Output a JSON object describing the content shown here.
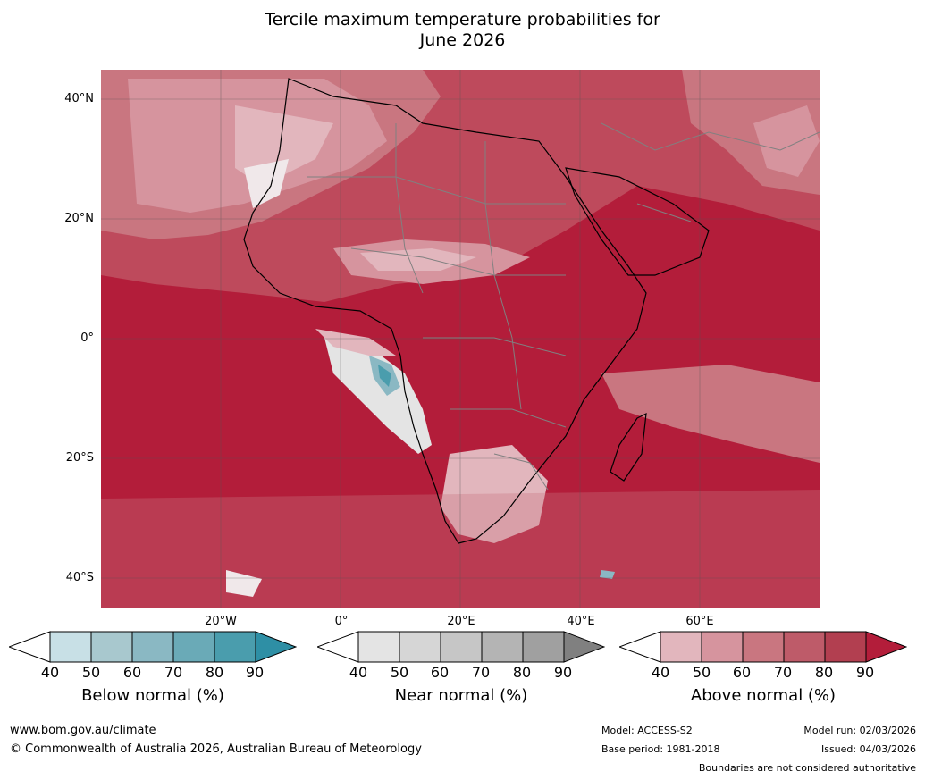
{
  "title": {
    "line1": "Tercile maximum temperature probabilities for",
    "line2": "June 2026"
  },
  "map": {
    "lat_labels": [
      "40°N",
      "20°N",
      "0°",
      "20°S",
      "40°S"
    ],
    "lon_labels": [
      "20°W",
      "0°",
      "20°E",
      "40°E",
      "60°E"
    ]
  },
  "colorbars": [
    {
      "label": "Below normal (%)",
      "ticks": [
        "40",
        "50",
        "60",
        "70",
        "80",
        "90"
      ],
      "colors": [
        "#ffffff",
        "#c8e0e6",
        "#a8c8ce",
        "#8ab8c3",
        "#6aaab7",
        "#4a9dad",
        "#2e8fa5"
      ]
    },
    {
      "label": "Near normal (%)",
      "ticks": [
        "40",
        "50",
        "60",
        "70",
        "80",
        "90"
      ],
      "colors": [
        "#ffffff",
        "#e4e4e4",
        "#d6d6d6",
        "#c6c6c6",
        "#b4b4b4",
        "#a0a0a0",
        "#808080"
      ]
    },
    {
      "label": "Above normal (%)",
      "ticks": [
        "40",
        "50",
        "60",
        "70",
        "80",
        "90"
      ],
      "colors": [
        "#ffffff",
        "#e2b6bd",
        "#d6949e",
        "#c97680",
        "#be5b69",
        "#b23f50",
        "#b31d3a"
      ]
    }
  ],
  "footer": {
    "website": "www.bom.gov.au/climate",
    "copyright": "© Commonwealth of Australia 2026, Australian Bureau of Meteorology",
    "model": "Model: ACCESS-S2",
    "base_period": "Base period: 1981-2018",
    "model_run": "Model run: 02/03/2026",
    "issued": "Issued: 04/03/2026",
    "disclaimer": "Boundaries are not considered authoritative"
  }
}
